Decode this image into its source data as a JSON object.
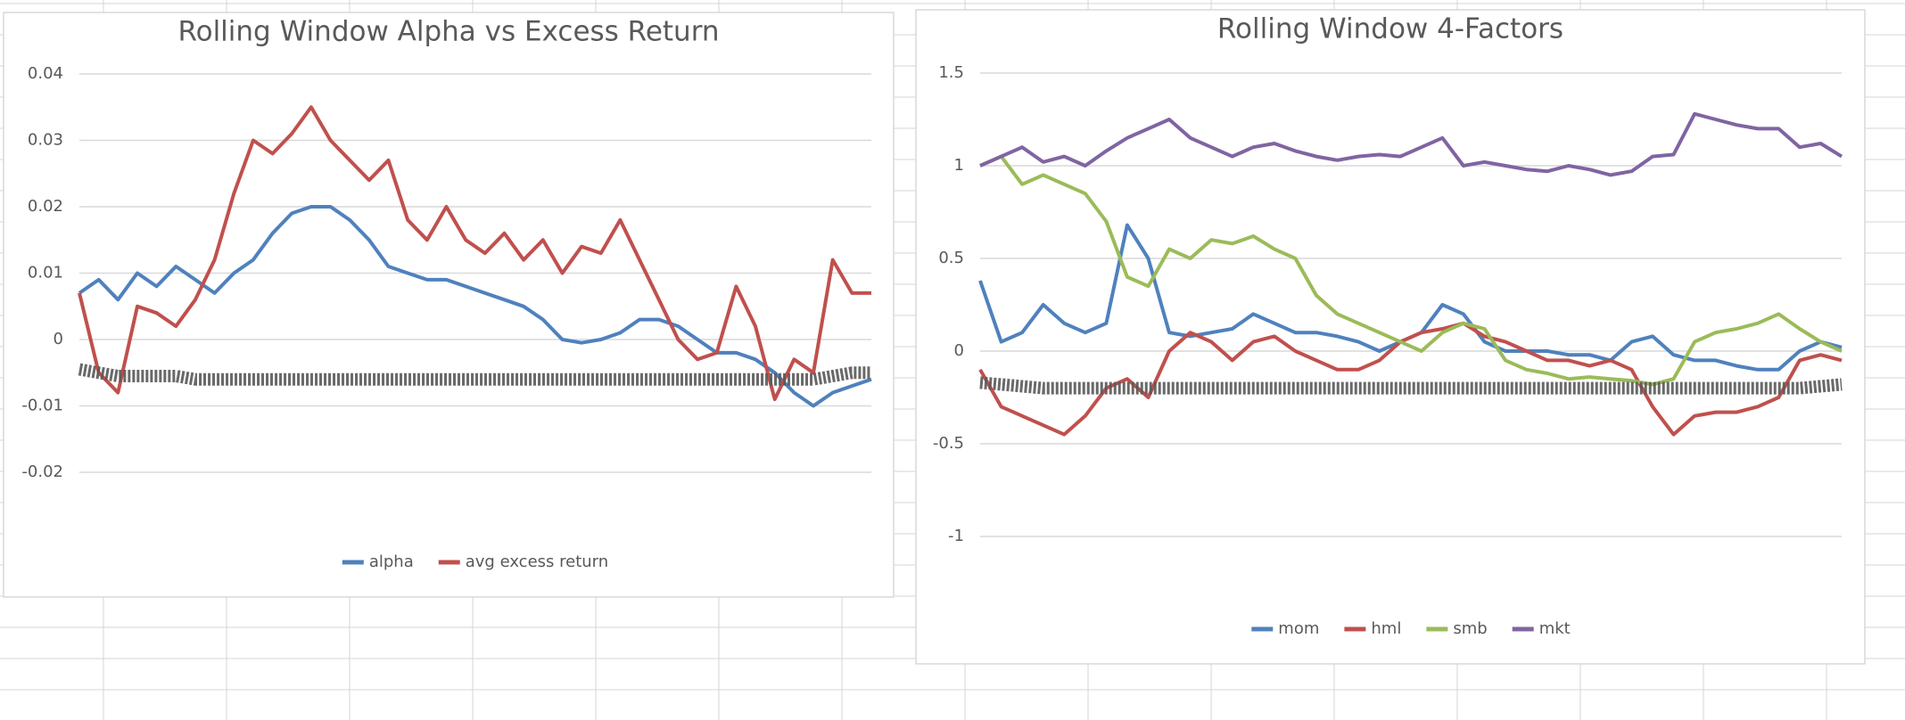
{
  "chart_data": [
    {
      "type": "line",
      "title": "Rolling Window Alpha vs Excess Return",
      "ylim": [
        -0.02,
        0.04
      ],
      "yticks": [
        -0.02,
        -0.01,
        0,
        0.01,
        0.02,
        0.03,
        0.04
      ],
      "grid": true,
      "series": [
        {
          "name": "alpha",
          "color": "#4f81bd",
          "values": [
            0.007,
            0.009,
            0.006,
            0.01,
            0.008,
            0.011,
            0.009,
            0.007,
            0.01,
            0.012,
            0.016,
            0.019,
            0.02,
            0.02,
            0.018,
            0.015,
            0.011,
            0.01,
            0.009,
            0.009,
            0.008,
            0.007,
            0.006,
            0.005,
            0.003,
            0.0,
            -0.0005,
            0.0,
            0.001,
            0.003,
            0.003,
            0.002,
            0.0,
            -0.002,
            -0.002,
            -0.003,
            -0.005,
            -0.008,
            -0.01,
            -0.008,
            -0.007,
            -0.006
          ]
        },
        {
          "name": "avg excess return",
          "color": "#c0504d",
          "values": [
            0.007,
            -0.005,
            -0.008,
            0.005,
            0.004,
            0.002,
            0.006,
            0.012,
            0.022,
            0.03,
            0.028,
            0.031,
            0.035,
            0.03,
            0.027,
            0.024,
            0.027,
            0.018,
            0.015,
            0.02,
            0.015,
            0.013,
            0.016,
            0.012,
            0.015,
            0.01,
            0.014,
            0.013,
            0.018,
            0.012,
            0.006,
            0.0,
            -0.003,
            -0.002,
            0.008,
            0.002,
            -0.009,
            -0.003,
            -0.005,
            0.012,
            0.007,
            0.007
          ]
        },
        {
          "color": "#595959",
          "values": [
            -0.0045,
            -0.005,
            -0.0055,
            -0.0055,
            -0.0055,
            -0.0055,
            -0.006,
            -0.006,
            -0.006,
            -0.006,
            -0.006,
            -0.006,
            -0.006,
            -0.006,
            -0.006,
            -0.006,
            -0.006,
            -0.006,
            -0.006,
            -0.006,
            -0.006,
            -0.006,
            -0.006,
            -0.006,
            -0.006,
            -0.006,
            -0.006,
            -0.006,
            -0.006,
            -0.006,
            -0.006,
            -0.006,
            -0.006,
            -0.006,
            -0.006,
            -0.006,
            -0.006,
            -0.006,
            -0.006,
            -0.0055,
            -0.005,
            -0.005
          ]
        }
      ]
    },
    {
      "type": "line",
      "title": "Rolling Window 4-Factors",
      "ylim": [
        -1,
        1.5
      ],
      "yticks": [
        -1,
        -0.5,
        0,
        0.5,
        1,
        1.5
      ],
      "grid": true,
      "series": [
        {
          "name": "mom",
          "color": "#4f81bd",
          "values": [
            0.38,
            0.05,
            0.1,
            0.25,
            0.15,
            0.1,
            0.15,
            0.68,
            0.5,
            0.1,
            0.08,
            0.1,
            0.12,
            0.2,
            0.15,
            0.1,
            0.1,
            0.08,
            0.05,
            0.0,
            0.05,
            0.1,
            0.25,
            0.2,
            0.05,
            0.0,
            0.0,
            0.0,
            -0.02,
            -0.02,
            -0.05,
            0.05,
            0.08,
            -0.02,
            -0.05,
            -0.05,
            -0.08,
            -0.1,
            -0.1,
            0.0,
            0.05,
            0.02
          ]
        },
        {
          "name": "hml",
          "color": "#c0504d",
          "values": [
            -0.1,
            -0.3,
            -0.35,
            -0.4,
            -0.45,
            -0.35,
            -0.2,
            -0.15,
            -0.25,
            0.0,
            0.1,
            0.05,
            -0.05,
            0.05,
            0.08,
            0.0,
            -0.05,
            -0.1,
            -0.1,
            -0.05,
            0.05,
            0.1,
            0.12,
            0.15,
            0.08,
            0.05,
            0.0,
            -0.05,
            -0.05,
            -0.08,
            -0.05,
            -0.1,
            -0.3,
            -0.45,
            -0.35,
            -0.33,
            -0.33,
            -0.3,
            -0.25,
            -0.05,
            -0.02,
            -0.05
          ]
        },
        {
          "name": "smb",
          "color": "#9bbb59",
          "values": [
            1.0,
            1.05,
            0.9,
            0.95,
            0.9,
            0.85,
            0.7,
            0.4,
            0.35,
            0.55,
            0.5,
            0.6,
            0.58,
            0.62,
            0.55,
            0.5,
            0.3,
            0.2,
            0.15,
            0.1,
            0.05,
            0.0,
            0.1,
            0.15,
            0.12,
            -0.05,
            -0.1,
            -0.12,
            -0.15,
            -0.14,
            -0.15,
            -0.16,
            -0.18,
            -0.15,
            0.05,
            0.1,
            0.12,
            0.15,
            0.2,
            0.12,
            0.05,
            0.0
          ]
        },
        {
          "name": "mkt",
          "color": "#8064a2",
          "values": [
            1.0,
            1.05,
            1.1,
            1.02,
            1.05,
            1.0,
            1.08,
            1.15,
            1.2,
            1.25,
            1.15,
            1.1,
            1.05,
            1.1,
            1.12,
            1.08,
            1.05,
            1.03,
            1.05,
            1.06,
            1.05,
            1.1,
            1.15,
            1.0,
            1.02,
            1.0,
            0.98,
            0.97,
            1.0,
            0.98,
            0.95,
            0.97,
            1.05,
            1.06,
            1.28,
            1.25,
            1.22,
            1.2,
            1.2,
            1.1,
            1.12,
            1.05
          ]
        },
        {
          "color": "#595959",
          "values": [
            -0.17,
            -0.18,
            -0.19,
            -0.2,
            -0.2,
            -0.2,
            -0.2,
            -0.2,
            -0.2,
            -0.2,
            -0.2,
            -0.2,
            -0.2,
            -0.2,
            -0.2,
            -0.2,
            -0.2,
            -0.2,
            -0.2,
            -0.2,
            -0.2,
            -0.2,
            -0.2,
            -0.2,
            -0.2,
            -0.2,
            -0.2,
            -0.2,
            -0.2,
            -0.2,
            -0.2,
            -0.2,
            -0.2,
            -0.2,
            -0.2,
            -0.2,
            -0.2,
            -0.2,
            -0.2,
            -0.2,
            -0.19,
            -0.18
          ]
        }
      ]
    }
  ]
}
